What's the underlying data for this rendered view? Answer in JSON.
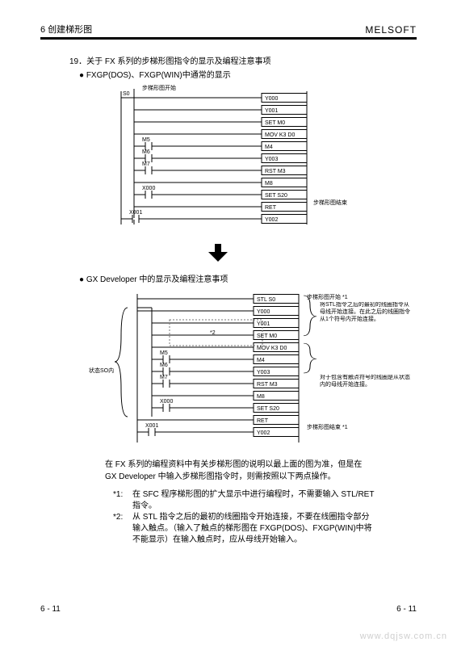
{
  "header": {
    "left": "6 创建梯形图",
    "right": "MELSOFT"
  },
  "item19": "19．关于 FX 系列的步梯形图指令的显示及编程注意事项",
  "bullet_fxgp": "● FXGP(DOS)、FXGP(WIN)中通常的显示",
  "bullet_gx": "● GX Developer 中的显示及编程注意事项",
  "ladder1": {
    "anno_start": "步梯形图开始",
    "anno_end": "步梯形图结束",
    "rows": [
      {
        "left": "",
        "right": "Y000"
      },
      {
        "left": "",
        "right": "Y001"
      },
      {
        "left": "",
        "right": "SET  M0"
      },
      {
        "left": "",
        "right": "MOV  K3 D0"
      },
      {
        "left": "M5",
        "right": "M4"
      },
      {
        "left": "M6",
        "right": "Y003"
      },
      {
        "left": "M7",
        "right": "RST  M3"
      },
      {
        "left": "",
        "right": "M8"
      },
      {
        "left": "X000",
        "right": "SET  S20"
      },
      {
        "left": "",
        "right": "RET"
      },
      {
        "left": "X001",
        "right": "Y002"
      }
    ],
    "s0": "S0"
  },
  "ladder2": {
    "anno_start": "步梯形图开始",
    "anno_end": "步梯形图结束",
    "anno_stl": "将STL指令之后的最初的线圈指令从母线开始连接。在此之后的线圈指令从1个符号内开始连接。",
    "anno_contact": "对于包含有触点符号的线圈是从状态内的母线开始连接。",
    "state_label": "状态SO内",
    "star_note": "*2",
    "star1_on_start": "*1",
    "star1_on_end": "*1",
    "rows": [
      {
        "left": "",
        "right": "STL  S0"
      },
      {
        "left": "",
        "right": "Y000"
      },
      {
        "left": "",
        "right": "Y001"
      },
      {
        "left": "",
        "right": "SET  M0"
      },
      {
        "left": "",
        "right": "MOV  K3 D0"
      },
      {
        "left": "M5",
        "right": "M4"
      },
      {
        "left": "M6",
        "right": "Y003"
      },
      {
        "left": "M7",
        "right": "RST  M3"
      },
      {
        "left": "",
        "right": "M8"
      },
      {
        "left": "X000",
        "right": "SET  S20"
      },
      {
        "left": "",
        "right": "RET"
      },
      {
        "left": "X001",
        "right": "Y002"
      }
    ]
  },
  "explain": "在 FX 系列的编程资料中有关步梯形图的说明以最上面的图为准，但是在 GX Developer 中输入步梯形图指令时，则需按照以下两点操作。",
  "notes": {
    "n1": {
      "tag": "*1:",
      "body": "在 SFC 程序梯形图的扩大显示中进行编程时，不需要输入 STL/RET 指令。"
    },
    "n2": {
      "tag": "*2:",
      "body": "从 STL 指令之后的最初的线圈指令开始连接，不要在线圈指令部分输入触点。（输入了触点的梯形图在 FXGP(DOS)、FXGP(WIN)中将不能显示）在输入触点时，应从母线开始输入。"
    }
  },
  "footer": {
    "left": "6 - 11",
    "right": "6 - 11"
  },
  "watermark": "www.dqjsw.com.cn",
  "colors": {
    "line": "#000000",
    "dotted": "#777777"
  }
}
